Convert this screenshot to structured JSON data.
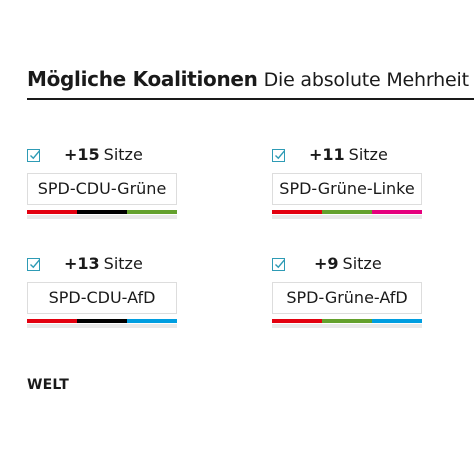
{
  "header": {
    "title": "Mögliche Koalitionen",
    "subtitle": "Die absolute Mehrheit lie"
  },
  "coalitions": [
    {
      "checked": true,
      "seats": "+15",
      "unit": "Sitze",
      "name": "SPD-CDU-Grüne",
      "colors": [
        "#e3000f",
        "#000000",
        "#64a12d"
      ]
    },
    {
      "checked": true,
      "seats": "+11",
      "unit": "Sitze",
      "name": "SPD-Grüne-Linke",
      "colors": [
        "#e3000f",
        "#64a12d",
        "#e5007d"
      ]
    },
    {
      "checked": true,
      "seats": "+13",
      "unit": "Sitze",
      "name": "SPD-CDU-AfD",
      "colors": [
        "#e3000f",
        "#000000",
        "#009ee0"
      ]
    },
    {
      "checked": true,
      "seats": "+9",
      "unit": "Sitze",
      "name": "SPD-Grüne-AfD",
      "colors": [
        "#e3000f",
        "#64a12d",
        "#009ee0"
      ]
    }
  ],
  "logo": "WELT"
}
